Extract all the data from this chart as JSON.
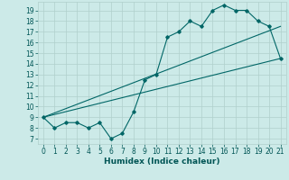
{
  "title": "",
  "xlabel": "Humidex (Indice chaleur)",
  "ylabel": "",
  "xlim": [
    -0.5,
    21.5
  ],
  "ylim": [
    6.5,
    19.8
  ],
  "xticks": [
    0,
    1,
    2,
    3,
    4,
    5,
    6,
    7,
    8,
    9,
    10,
    11,
    12,
    13,
    14,
    15,
    16,
    17,
    18,
    19,
    20,
    21
  ],
  "yticks": [
    7,
    8,
    9,
    10,
    11,
    12,
    13,
    14,
    15,
    16,
    17,
    18,
    19
  ],
  "bg_color": "#cceae8",
  "grid_color": "#b0d0cc",
  "line_color": "#006666",
  "curve1_x": [
    0,
    1,
    2,
    3,
    4,
    5,
    6,
    7,
    8,
    9,
    10,
    11,
    12,
    13,
    14,
    15,
    16,
    17,
    18,
    19,
    20,
    21
  ],
  "curve1_y": [
    9.0,
    8.0,
    8.5,
    8.5,
    8.0,
    8.5,
    7.0,
    7.5,
    9.5,
    12.5,
    13.0,
    16.5,
    17.0,
    18.0,
    17.5,
    19.0,
    19.5,
    19.0,
    19.0,
    18.0,
    17.5,
    14.5
  ],
  "line2_x": [
    0,
    21
  ],
  "line2_y": [
    9.0,
    14.5
  ],
  "line3_x": [
    0,
    21
  ],
  "line3_y": [
    9.0,
    17.5
  ],
  "font_color": "#005555",
  "tick_fontsize": 5.5,
  "label_fontsize": 6.5
}
